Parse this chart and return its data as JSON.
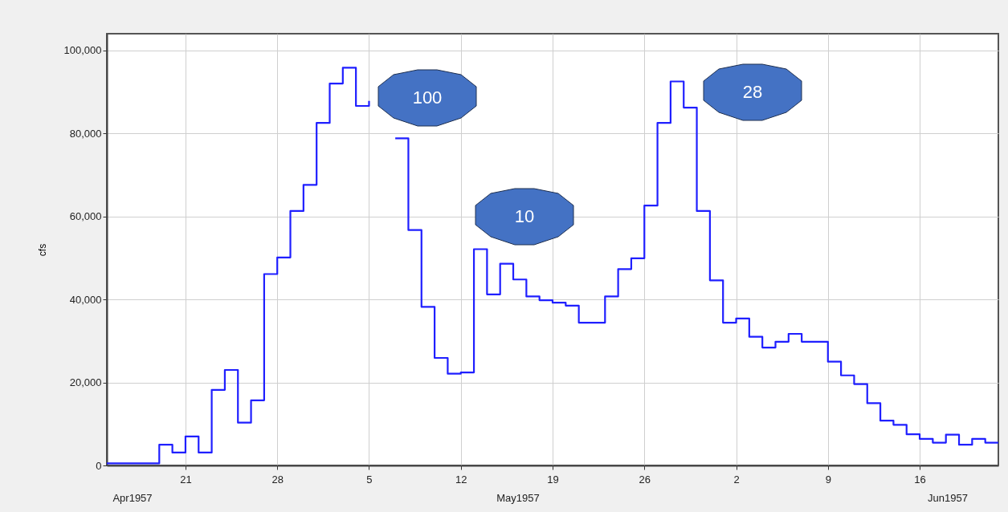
{
  "chart_data": {
    "type": "step",
    "ylabel": "cfs",
    "x": [
      "1957-04-15",
      "1957-04-16",
      "1957-04-17",
      "1957-04-18",
      "1957-04-19",
      "1957-04-20",
      "1957-04-21",
      "1957-04-22",
      "1957-04-23",
      "1957-04-24",
      "1957-04-25",
      "1957-04-26",
      "1957-04-27",
      "1957-04-28",
      "1957-04-29",
      "1957-04-30",
      "1957-05-01",
      "1957-05-02",
      "1957-05-03",
      "1957-05-04",
      "1957-05-05",
      "1957-05-06",
      "1957-05-07",
      "1957-05-08",
      "1957-05-09",
      "1957-05-10",
      "1957-05-11",
      "1957-05-12",
      "1957-05-13",
      "1957-05-14",
      "1957-05-15",
      "1957-05-16",
      "1957-05-17",
      "1957-05-18",
      "1957-05-19",
      "1957-05-20",
      "1957-05-21",
      "1957-05-22",
      "1957-05-23",
      "1957-05-24",
      "1957-05-25",
      "1957-05-26",
      "1957-05-27",
      "1957-05-28",
      "1957-05-29",
      "1957-05-30",
      "1957-05-31",
      "1957-06-01",
      "1957-06-02",
      "1957-06-03",
      "1957-06-04",
      "1957-06-05",
      "1957-06-06",
      "1957-06-07",
      "1957-06-08",
      "1957-06-09",
      "1957-06-10",
      "1957-06-11",
      "1957-06-12",
      "1957-06-13",
      "1957-06-14",
      "1957-06-15",
      "1957-06-16",
      "1957-06-17",
      "1957-06-18",
      "1957-06-19",
      "1957-06-20",
      "1957-06-21",
      "1957-06-22"
    ],
    "series": [
      {
        "color": "#1f1fff",
        "values": [
          500,
          500,
          500,
          500,
          5000,
          3100,
          7000,
          3100,
          18200,
          23000,
          10300,
          15700,
          46100,
          50100,
          61300,
          67600,
          82500,
          92000,
          95800,
          86600,
          87800,
          null,
          78800,
          56700,
          38200,
          25900,
          22100,
          22400,
          52100,
          41200,
          48600,
          44800,
          40700,
          39800,
          39200,
          38500,
          34400,
          34400,
          40700,
          47300,
          49900,
          62600,
          82500,
          92500,
          86200,
          61300,
          44600,
          34400,
          35400,
          31000,
          28400,
          29800,
          31700,
          29800,
          29800,
          25000,
          21700,
          19600,
          15000,
          10800,
          9800,
          7500,
          6400,
          5500,
          7400,
          5000,
          6400,
          5500,
          5500
        ]
      }
    ],
    "xlim": [
      "1957-04-15",
      "1957-06-22"
    ],
    "xticks": [
      {
        "value": "1957-04-21",
        "label": "21"
      },
      {
        "value": "1957-04-28",
        "label": "28"
      },
      {
        "value": "1957-05-05",
        "label": "5"
      },
      {
        "value": "1957-05-12",
        "label": "12"
      },
      {
        "value": "1957-05-19",
        "label": "19"
      },
      {
        "value": "1957-05-26",
        "label": "26"
      },
      {
        "value": "1957-06-02",
        "label": "2"
      },
      {
        "value": "1957-06-09",
        "label": "9"
      },
      {
        "value": "1957-06-16",
        "label": "16"
      }
    ],
    "ylim": [
      0,
      104000
    ],
    "yticks": [
      {
        "value": 0,
        "label": "0"
      },
      {
        "value": 20000,
        "label": "20,000"
      },
      {
        "value": 40000,
        "label": "40,000"
      },
      {
        "value": 60000,
        "label": "60,000"
      },
      {
        "value": 80000,
        "label": "80,000"
      },
      {
        "value": 100000,
        "label": "100,000"
      }
    ],
    "grid": true,
    "annotations": [
      "100",
      "10",
      "28",
      "Apr1957",
      "May1957",
      "Jun1957"
    ]
  }
}
